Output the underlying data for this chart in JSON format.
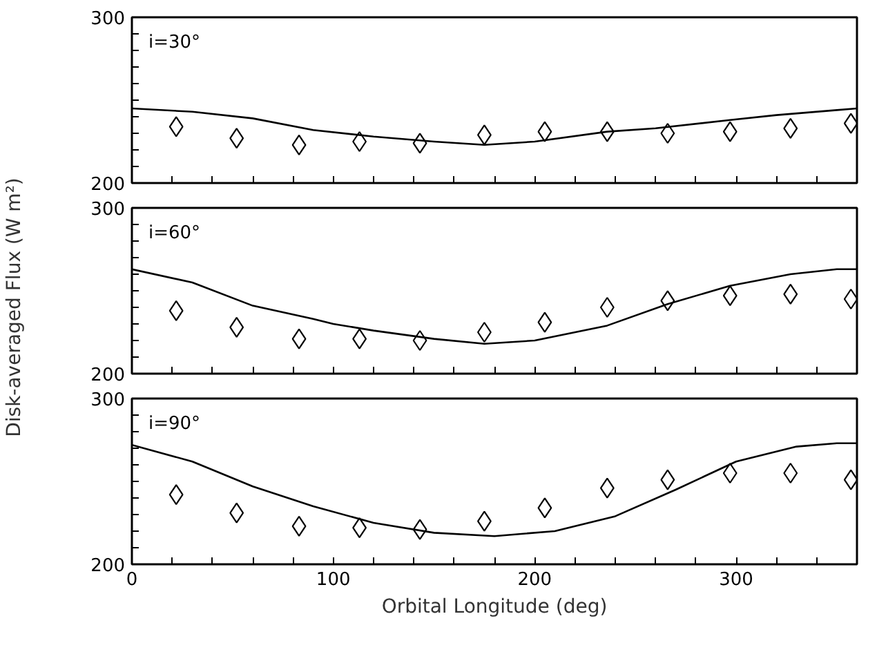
{
  "chart_data": [
    {
      "type": "line",
      "annotations": [
        "i=30°"
      ],
      "xlim": [
        0,
        360
      ],
      "ylim": [
        200,
        300
      ],
      "tick_labels": "y",
      "grid": false,
      "xticks": [
        0,
        {
          "value": 20,
          "label": null
        },
        {
          "value": 40,
          "label": null
        },
        {
          "value": 60,
          "label": null
        },
        {
          "value": 80,
          "label": null
        },
        100,
        {
          "value": 120,
          "label": null
        },
        {
          "value": 140,
          "label": null
        },
        {
          "value": 160,
          "label": null
        },
        {
          "value": 180,
          "label": null
        },
        200,
        {
          "value": 220,
          "label": null
        },
        {
          "value": 240,
          "label": null
        },
        {
          "value": 260,
          "label": null
        },
        {
          "value": 280,
          "label": null
        },
        300,
        {
          "value": 320,
          "label": null
        },
        {
          "value": 340,
          "label": null
        },
        {
          "value": 360,
          "label": null
        }
      ],
      "yticks": [
        200,
        {
          "value": 210,
          "label": null
        },
        {
          "value": 220,
          "label": null
        },
        {
          "value": 230,
          "label": null
        },
        {
          "value": 240,
          "label": null
        },
        {
          "value": 250,
          "label": null
        },
        {
          "value": 260,
          "label": null
        },
        {
          "value": 270,
          "label": null
        },
        {
          "value": 280,
          "label": null
        },
        {
          "value": 290,
          "label": null
        },
        300
      ],
      "series": [
        {
          "color": "#000000",
          "line_style": "solid",
          "x": [
            0,
            30,
            60,
            90,
            120,
            150,
            175,
            200,
            236,
            260,
            297,
            320,
            350,
            360
          ],
          "values": [
            245,
            243,
            239,
            232,
            228,
            225,
            223,
            225,
            231,
            233,
            238,
            241,
            244,
            245
          ]
        },
        {
          "type": "scatter",
          "color": "#000000",
          "marker": "diamond",
          "x": [
            22,
            52,
            83,
            113,
            143,
            175,
            205,
            236,
            266,
            297,
            327,
            357
          ],
          "values": [
            234,
            227,
            223,
            225,
            224,
            229,
            231,
            231,
            230,
            231,
            233,
            236
          ]
        }
      ]
    },
    {
      "type": "line",
      "annotations": [
        "i=60°"
      ],
      "xlim": [
        0,
        360
      ],
      "ylim": [
        200,
        300
      ],
      "tick_labels": "y",
      "grid": false,
      "ylabel": "Disk-averaged Flux (W m²)",
      "xticks": [
        0,
        {
          "value": 20,
          "label": null
        },
        {
          "value": 40,
          "label": null
        },
        {
          "value": 60,
          "label": null
        },
        {
          "value": 80,
          "label": null
        },
        100,
        {
          "value": 120,
          "label": null
        },
        {
          "value": 140,
          "label": null
        },
        {
          "value": 160,
          "label": null
        },
        {
          "value": 180,
          "label": null
        },
        200,
        {
          "value": 220,
          "label": null
        },
        {
          "value": 240,
          "label": null
        },
        {
          "value": 260,
          "label": null
        },
        {
          "value": 280,
          "label": null
        },
        300,
        {
          "value": 320,
          "label": null
        },
        {
          "value": 340,
          "label": null
        },
        {
          "value": 360,
          "label": null
        }
      ],
      "yticks": [
        200,
        {
          "value": 210,
          "label": null
        },
        {
          "value": 220,
          "label": null
        },
        {
          "value": 230,
          "label": null
        },
        {
          "value": 240,
          "label": null
        },
        {
          "value": 250,
          "label": null
        },
        {
          "value": 260,
          "label": null
        },
        {
          "value": 270,
          "label": null
        },
        {
          "value": 280,
          "label": null
        },
        {
          "value": 290,
          "label": null
        },
        300
      ],
      "series": [
        {
          "color": "#000000",
          "line_style": "solid",
          "x": [
            0,
            30,
            60,
            90,
            100,
            120,
            150,
            175,
            200,
            236,
            266,
            297,
            327,
            350,
            360
          ],
          "values": [
            263,
            255,
            241,
            233,
            230,
            226,
            221,
            218,
            220,
            229,
            242,
            253,
            260,
            263,
            263
          ]
        },
        {
          "type": "scatter",
          "color": "#000000",
          "marker": "diamond",
          "x": [
            22,
            52,
            83,
            113,
            143,
            175,
            205,
            236,
            266,
            297,
            327,
            357
          ],
          "values": [
            238,
            228,
            221,
            221,
            220,
            225,
            231,
            240,
            244,
            247,
            248,
            245
          ]
        }
      ]
    },
    {
      "type": "line",
      "annotations": [
        "i=90°"
      ],
      "xlim": [
        0,
        360
      ],
      "ylim": [
        200,
        300
      ],
      "grid": false,
      "xlabel": "Orbital Longitude (deg)",
      "xticks": [
        0,
        {
          "value": 20,
          "label": null
        },
        {
          "value": 40,
          "label": null
        },
        {
          "value": 60,
          "label": null
        },
        {
          "value": 80,
          "label": null
        },
        100,
        {
          "value": 120,
          "label": null
        },
        {
          "value": 140,
          "label": null
        },
        {
          "value": 160,
          "label": null
        },
        {
          "value": 180,
          "label": null
        },
        200,
        {
          "value": 220,
          "label": null
        },
        {
          "value": 240,
          "label": null
        },
        {
          "value": 260,
          "label": null
        },
        {
          "value": 280,
          "label": null
        },
        300,
        {
          "value": 320,
          "label": null
        },
        {
          "value": 340,
          "label": null
        },
        {
          "value": 360,
          "label": null
        }
      ],
      "yticks": [
        200,
        {
          "value": 210,
          "label": null
        },
        {
          "value": 220,
          "label": null
        },
        {
          "value": 230,
          "label": null
        },
        {
          "value": 240,
          "label": null
        },
        {
          "value": 250,
          "label": null
        },
        {
          "value": 260,
          "label": null
        },
        {
          "value": 270,
          "label": null
        },
        {
          "value": 280,
          "label": null
        },
        {
          "value": 290,
          "label": null
        },
        300
      ],
      "series": [
        {
          "color": "#000000",
          "line_style": "solid",
          "x": [
            0,
            30,
            60,
            90,
            120,
            150,
            180,
            210,
            240,
            270,
            300,
            330,
            350,
            360
          ],
          "values": [
            272,
            262,
            247,
            235,
            225,
            219,
            217,
            220,
            229,
            245,
            262,
            271,
            273,
            273
          ]
        },
        {
          "type": "scatter",
          "color": "#000000",
          "marker": "diamond",
          "x": [
            22,
            52,
            83,
            113,
            143,
            175,
            205,
            236,
            266,
            297,
            327,
            357
          ],
          "values": [
            242,
            231,
            223,
            222,
            221,
            226,
            234,
            246,
            251,
            255,
            255,
            251
          ]
        }
      ]
    }
  ]
}
